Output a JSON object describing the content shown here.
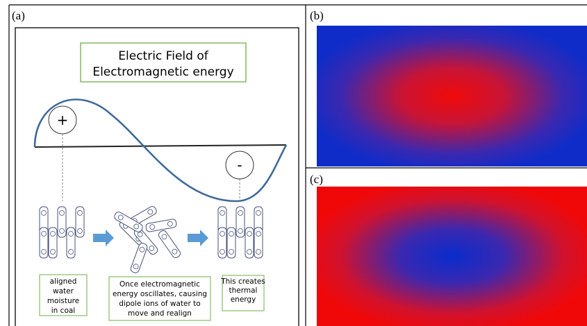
{
  "panels": {
    "a": {
      "label": "(a)",
      "title_lines": [
        "Electric Field of",
        "Electromagnetic energy"
      ],
      "plus": "+",
      "minus": "-",
      "captions": [
        {
          "lines": [
            "aligned",
            "water",
            "moisture",
            "in coal"
          ]
        },
        {
          "lines": [
            "Once electromagnetic",
            "energy oscillates, causing",
            "dipole ions of water to",
            "move and realign"
          ]
        },
        {
          "lines": [
            "This creates",
            "thermal",
            "energy"
          ]
        }
      ]
    },
    "b": {
      "label": "(b)"
    },
    "c": {
      "label": "(c)"
    }
  }
}
